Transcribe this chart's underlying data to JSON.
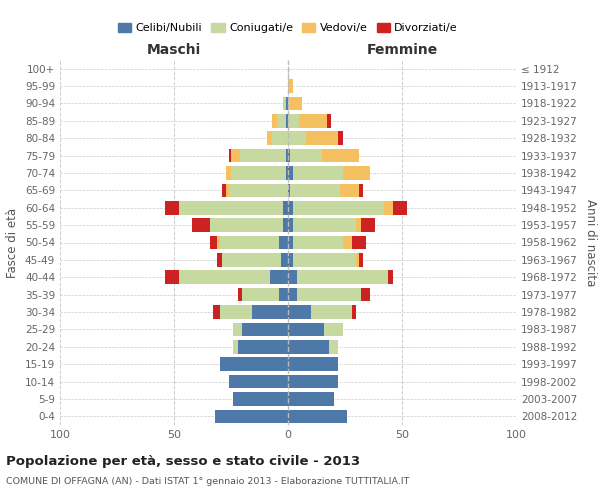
{
  "age_groups": [
    "100+",
    "95-99",
    "90-94",
    "85-89",
    "80-84",
    "75-79",
    "70-74",
    "65-69",
    "60-64",
    "55-59",
    "50-54",
    "45-49",
    "40-44",
    "35-39",
    "30-34",
    "25-29",
    "20-24",
    "15-19",
    "10-14",
    "5-9",
    "0-4"
  ],
  "birth_years": [
    "≤ 1912",
    "1913-1917",
    "1918-1922",
    "1923-1927",
    "1928-1932",
    "1933-1937",
    "1938-1942",
    "1943-1947",
    "1948-1952",
    "1953-1957",
    "1958-1962",
    "1963-1967",
    "1968-1972",
    "1973-1977",
    "1978-1982",
    "1983-1987",
    "1988-1992",
    "1993-1997",
    "1998-2002",
    "2003-2007",
    "2008-2012"
  ],
  "maschi_celibi": [
    0,
    0,
    1,
    1,
    0,
    1,
    1,
    0,
    2,
    2,
    4,
    3,
    8,
    4,
    16,
    20,
    22,
    30,
    26,
    24,
    32
  ],
  "maschi_coniugati": [
    0,
    0,
    1,
    4,
    7,
    20,
    24,
    26,
    46,
    32,
    26,
    26,
    40,
    16,
    14,
    4,
    2,
    0,
    0,
    0,
    0
  ],
  "maschi_vedovi": [
    0,
    0,
    0,
    2,
    2,
    4,
    2,
    1,
    0,
    0,
    1,
    0,
    0,
    0,
    0,
    0,
    0,
    0,
    0,
    0,
    0
  ],
  "maschi_divorziati": [
    0,
    0,
    0,
    0,
    0,
    1,
    0,
    2,
    6,
    8,
    3,
    2,
    6,
    2,
    3,
    0,
    0,
    0,
    0,
    0,
    0
  ],
  "femmine_nubili": [
    0,
    0,
    0,
    0,
    0,
    1,
    2,
    1,
    2,
    2,
    2,
    2,
    4,
    4,
    10,
    16,
    18,
    22,
    22,
    20,
    26
  ],
  "femmine_coniugate": [
    0,
    0,
    1,
    5,
    8,
    14,
    22,
    22,
    40,
    28,
    22,
    28,
    40,
    28,
    18,
    8,
    4,
    0,
    0,
    0,
    0
  ],
  "femmine_vedove": [
    0,
    2,
    5,
    12,
    14,
    16,
    12,
    8,
    4,
    2,
    4,
    1,
    0,
    0,
    0,
    0,
    0,
    0,
    0,
    0,
    0
  ],
  "femmine_divorziate": [
    0,
    0,
    0,
    2,
    2,
    0,
    0,
    2,
    6,
    6,
    6,
    2,
    2,
    4,
    2,
    0,
    0,
    0,
    0,
    0,
    0
  ],
  "color_celibi": "#4e78a8",
  "color_coniugati": "#c5d9a0",
  "color_vedovi": "#f5c060",
  "color_divorziati": "#cc2222",
  "legend_labels": [
    "Celibi/Nubili",
    "Coniugati/e",
    "Vedovi/e",
    "Divorziati/e"
  ],
  "title": "Popolazione per età, sesso e stato civile - 2013",
  "subtitle": "COMUNE DI OFFAGNA (AN) - Dati ISTAT 1° gennaio 2013 - Elaborazione TUTTITALIA.IT",
  "ylabel_left": "Fasce di età",
  "ylabel_right": "Anni di nascita",
  "label_maschi": "Maschi",
  "label_femmine": "Femmine",
  "xlim": 100,
  "background_color": "#ffffff",
  "grid_color": "#cccccc"
}
